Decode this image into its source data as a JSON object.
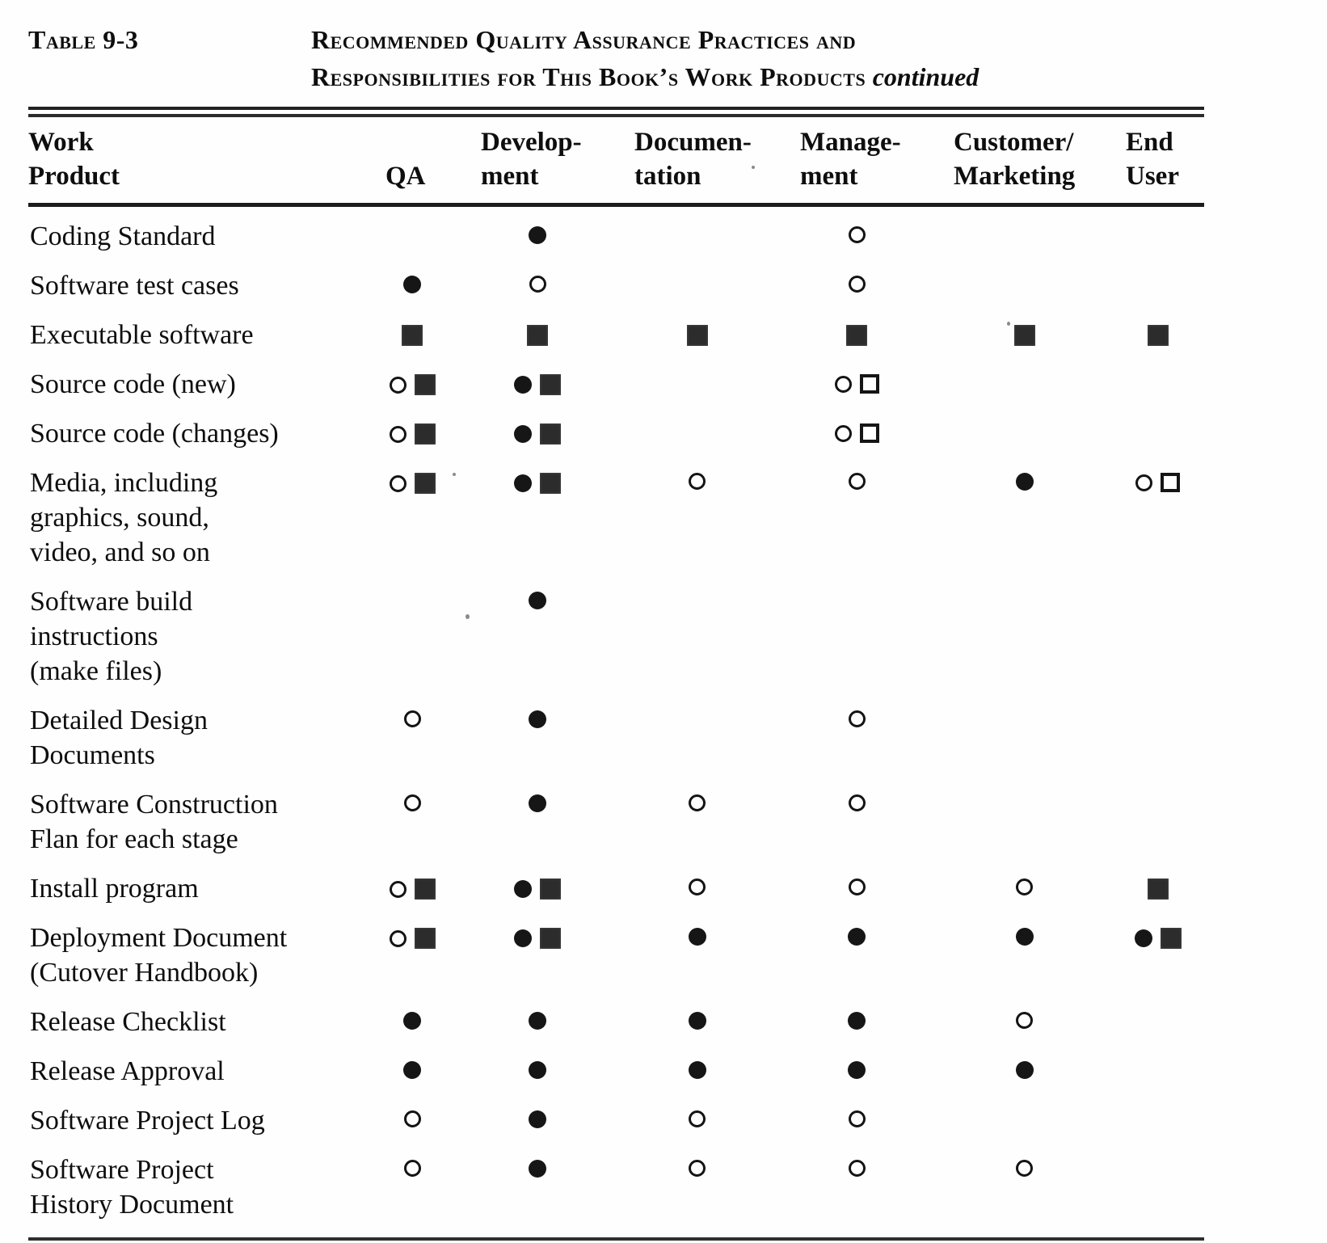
{
  "header": {
    "table_label": "Table 9-3",
    "title_line1": "Recommended Quality Assurance Practices and",
    "title_line2": "Responsibilities for This Book’s Work Products",
    "continued": "continued"
  },
  "table": {
    "columns": [
      "Work\nProduct",
      "QA",
      "Develop-\nment",
      "Documen-\ntation",
      "Manage-\nment",
      "Customer/\nMarketing",
      "End\nUser"
    ],
    "symbol_glyphs": {
      "filled-circle": "●",
      "open-circle": "○",
      "filled-square": "■",
      "open-square": "□"
    },
    "rows": [
      {
        "label": "Coding Standard",
        "cells": [
          [],
          [
            "filled-circle"
          ],
          [],
          [
            "open-circle"
          ],
          [],
          []
        ]
      },
      {
        "label": "Software test cases",
        "cells": [
          [
            "filled-circle"
          ],
          [
            "open-circle"
          ],
          [],
          [
            "open-circle"
          ],
          [],
          []
        ]
      },
      {
        "label": "Executable software",
        "cells": [
          [
            "filled-square"
          ],
          [
            "filled-square"
          ],
          [
            "filled-square"
          ],
          [
            "filled-square"
          ],
          [
            "filled-square"
          ],
          [
            "filled-square"
          ]
        ]
      },
      {
        "label": "Source code (new)",
        "cells": [
          [
            "open-circle",
            "filled-square"
          ],
          [
            "filled-circle",
            "filled-square"
          ],
          [],
          [
            "open-circle",
            "open-square"
          ],
          [],
          []
        ]
      },
      {
        "label": "Source code (changes)",
        "cells": [
          [
            "open-circle",
            "filled-square"
          ],
          [
            "filled-circle",
            "filled-square"
          ],
          [],
          [
            "open-circle",
            "open-square"
          ],
          [],
          []
        ]
      },
      {
        "label": "Media, including\ngraphics, sound,\nvideo, and so on",
        "cells": [
          [
            "open-circle",
            "filled-square"
          ],
          [
            "filled-circle",
            "filled-square"
          ],
          [
            "open-circle"
          ],
          [
            "open-circle"
          ],
          [
            "filled-circle"
          ],
          [
            "open-circle",
            "open-square"
          ]
        ]
      },
      {
        "label": "Software build\ninstructions\n(make files)",
        "cells": [
          [],
          [
            "filled-circle"
          ],
          [],
          [],
          [],
          []
        ]
      },
      {
        "label": "Detailed Design\nDocuments",
        "cells": [
          [
            "open-circle"
          ],
          [
            "filled-circle"
          ],
          [],
          [
            "open-circle"
          ],
          [],
          []
        ]
      },
      {
        "label": "Software Construction\nFlan for each stage",
        "cells": [
          [
            "open-circle"
          ],
          [
            "filled-circle"
          ],
          [
            "open-circle"
          ],
          [
            "open-circle"
          ],
          [],
          []
        ]
      },
      {
        "label": "Install program",
        "cells": [
          [
            "open-circle",
            "filled-square"
          ],
          [
            "filled-circle",
            "filled-square"
          ],
          [
            "open-circle"
          ],
          [
            "open-circle"
          ],
          [
            "open-circle"
          ],
          [
            "filled-square"
          ]
        ]
      },
      {
        "label": "Deployment Document\n(Cutover Handbook)",
        "cells": [
          [
            "open-circle",
            "filled-square"
          ],
          [
            "filled-circle",
            "filled-square"
          ],
          [
            "filled-circle"
          ],
          [
            "filled-circle"
          ],
          [
            "filled-circle"
          ],
          [
            "filled-circle",
            "filled-square"
          ]
        ]
      },
      {
        "label": "Release Checklist",
        "cells": [
          [
            "filled-circle"
          ],
          [
            "filled-circle"
          ],
          [
            "filled-circle"
          ],
          [
            "filled-circle"
          ],
          [
            "open-circle"
          ],
          []
        ]
      },
      {
        "label": "Release Approval",
        "cells": [
          [
            "filled-circle"
          ],
          [
            "filled-circle"
          ],
          [
            "filled-circle"
          ],
          [
            "filled-circle"
          ],
          [
            "filled-circle"
          ],
          []
        ]
      },
      {
        "label": "Software Project Log",
        "cells": [
          [
            "open-circle"
          ],
          [
            "filled-circle"
          ],
          [
            "open-circle"
          ],
          [
            "open-circle"
          ],
          [],
          []
        ]
      },
      {
        "label": "Software Project\nHistory Document",
        "cells": [
          [
            "open-circle"
          ],
          [
            "filled-circle"
          ],
          [
            "open-circle"
          ],
          [
            "open-circle"
          ],
          [
            "open-circle"
          ],
          []
        ]
      }
    ]
  }
}
